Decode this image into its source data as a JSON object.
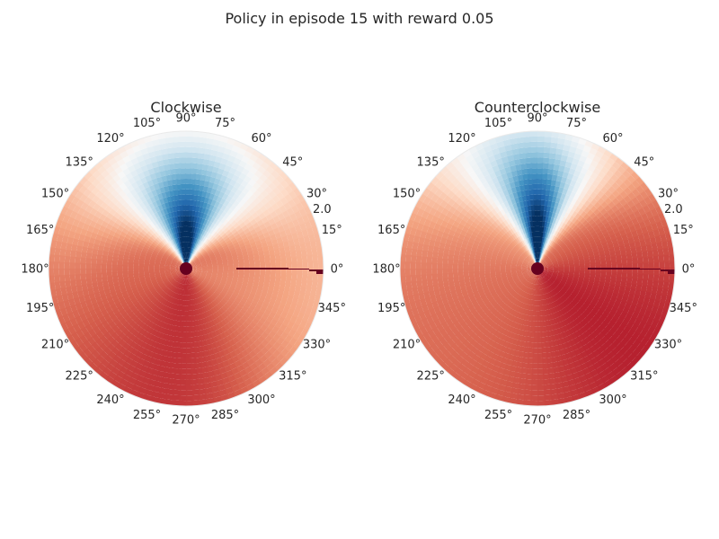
{
  "chart_data": {
    "type": "heatmap",
    "title": "Policy in episode 15 with reward 0.05",
    "colormap": "RdBu",
    "projection": "polar",
    "angle_ticks_deg": [
      0,
      15,
      30,
      45,
      60,
      75,
      90,
      105,
      120,
      135,
      150,
      165,
      180,
      195,
      210,
      225,
      240,
      255,
      270,
      285,
      300,
      315,
      330,
      345
    ],
    "angle_tick_labels": [
      "0°",
      "15°",
      "30°",
      "45°",
      "60°",
      "75°",
      "90°",
      "105°",
      "120°",
      "135°",
      "150°",
      "165°",
      "180°",
      "195°",
      "210°",
      "225°",
      "240°",
      "255°",
      "270°",
      "285°",
      "300°",
      "315°",
      "330°",
      "345°"
    ],
    "radial_tick_label": "2.0",
    "panels": [
      {
        "title": "Clockwise",
        "blue_lobe_center_deg": 90,
        "blue_lobe_halfwidth_deg": 45,
        "blue_peak_strength": 1.0,
        "red_peak_deg": 275,
        "red_peak_strength": 0.85,
        "light_region_deg": 330
      },
      {
        "title": "Counterclockwise",
        "blue_lobe_center_deg": 90,
        "blue_lobe_halfwidth_deg": 30,
        "blue_peak_strength": 1.0,
        "red_peak_deg": 320,
        "red_peak_strength": 0.9,
        "light_region_deg": 120
      }
    ]
  }
}
